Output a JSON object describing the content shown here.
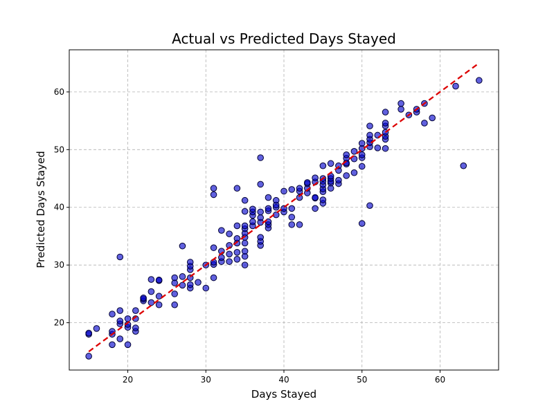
{
  "chart_data": {
    "type": "scatter",
    "title": "Actual vs Predicted Days Stayed",
    "xlabel": "Days Stayed",
    "ylabel": "Predicted Days Stayed",
    "xlim": [
      12.5,
      67.5
    ],
    "ylim": [
      11.8,
      67.3
    ],
    "xticks": [
      "20",
      "30",
      "40",
      "50",
      "60"
    ],
    "yticks": [
      "20",
      "30",
      "40",
      "50",
      "60"
    ],
    "grid": true,
    "grid_style": "dashed",
    "point_color": "#0000cc",
    "point_edge_color": "#000033",
    "line_color": "#dd0000",
    "reference_line": {
      "style": "dashed",
      "from": [
        15,
        15
      ],
      "to": [
        65,
        65
      ]
    },
    "points": [
      [
        15,
        14.2
      ],
      [
        15,
        18
      ],
      [
        15,
        18.2
      ],
      [
        16,
        19
      ],
      [
        18,
        16.2
      ],
      [
        18,
        18
      ],
      [
        18,
        18.5
      ],
      [
        18,
        21.5
      ],
      [
        19,
        17.2
      ],
      [
        19,
        19.8
      ],
      [
        19,
        20.3
      ],
      [
        19,
        22.1
      ],
      [
        19,
        31.4
      ],
      [
        20,
        16.2
      ],
      [
        20,
        19.2
      ],
      [
        20,
        19.7
      ],
      [
        20,
        20.7
      ],
      [
        21,
        18.5
      ],
      [
        21,
        19.1
      ],
      [
        21,
        20.7
      ],
      [
        21,
        22.1
      ],
      [
        22,
        23.8
      ],
      [
        22,
        24.1
      ],
      [
        22,
        24.3
      ],
      [
        23,
        23.5
      ],
      [
        23,
        25.4
      ],
      [
        23,
        27.5
      ],
      [
        24,
        23.1
      ],
      [
        24,
        24.6
      ],
      [
        24,
        27.3
      ],
      [
        24,
        27.4
      ],
      [
        26,
        23.1
      ],
      [
        26,
        25
      ],
      [
        26,
        26.9
      ],
      [
        26,
        27.8
      ],
      [
        27,
        26.5
      ],
      [
        27,
        28
      ],
      [
        27,
        33.3
      ],
      [
        28,
        26
      ],
      [
        28,
        26.6
      ],
      [
        28,
        27.8
      ],
      [
        28,
        29.2
      ],
      [
        28,
        29.8
      ],
      [
        28,
        30.5
      ],
      [
        29,
        27
      ],
      [
        30,
        26
      ],
      [
        30,
        30
      ],
      [
        31,
        27.8
      ],
      [
        31,
        30.1
      ],
      [
        31,
        30.5
      ],
      [
        31,
        33
      ],
      [
        31,
        42.2
      ],
      [
        31,
        43.3
      ],
      [
        32,
        30.6
      ],
      [
        32,
        31.3
      ],
      [
        32,
        32.4
      ],
      [
        32,
        36
      ],
      [
        33,
        30.6
      ],
      [
        33,
        31.9
      ],
      [
        33,
        33.4
      ],
      [
        33,
        35.4
      ],
      [
        34,
        31
      ],
      [
        34,
        32.2
      ],
      [
        34,
        33.8
      ],
      [
        34,
        34.6
      ],
      [
        34,
        36.8
      ],
      [
        34,
        43.3
      ],
      [
        35,
        30
      ],
      [
        35,
        31.5
      ],
      [
        35,
        32.4
      ],
      [
        35,
        33.8
      ],
      [
        35,
        34.8
      ],
      [
        35,
        35.5
      ],
      [
        35,
        36.3
      ],
      [
        35,
        36.8
      ],
      [
        35,
        39.3
      ],
      [
        35,
        41.2
      ],
      [
        36,
        36.8
      ],
      [
        36,
        37.5
      ],
      [
        36,
        38.6
      ],
      [
        36,
        39.2
      ],
      [
        36,
        39.7
      ],
      [
        37,
        33.4
      ],
      [
        37,
        34.1
      ],
      [
        37,
        34.8
      ],
      [
        37,
        37.4
      ],
      [
        37,
        38.2
      ],
      [
        37,
        39.2
      ],
      [
        37,
        44
      ],
      [
        37,
        48.6
      ],
      [
        38,
        36.4
      ],
      [
        38,
        37
      ],
      [
        38,
        37.5
      ],
      [
        38,
        39.4
      ],
      [
        38,
        39.8
      ],
      [
        38,
        41.7
      ],
      [
        39,
        38.7
      ],
      [
        39,
        40
      ],
      [
        39,
        40.4
      ],
      [
        39,
        41.2
      ],
      [
        40,
        39.2
      ],
      [
        40,
        39.8
      ],
      [
        40,
        42.8
      ],
      [
        41,
        37
      ],
      [
        41,
        38.3
      ],
      [
        41,
        39.8
      ],
      [
        41,
        43.1
      ],
      [
        42,
        37
      ],
      [
        42,
        41.7
      ],
      [
        42,
        42.8
      ],
      [
        42,
        43.3
      ],
      [
        43,
        42.5
      ],
      [
        43,
        43.3
      ],
      [
        43,
        44.1
      ],
      [
        43,
        44.3
      ],
      [
        44,
        39.8
      ],
      [
        44,
        41.6
      ],
      [
        44,
        41.7
      ],
      [
        44,
        44.4
      ],
      [
        44,
        45.1
      ],
      [
        45,
        40.7
      ],
      [
        45,
        41.3
      ],
      [
        45,
        42.7
      ],
      [
        45,
        43.2
      ],
      [
        45,
        43.9
      ],
      [
        45,
        44.5
      ],
      [
        45,
        45
      ],
      [
        45,
        47.2
      ],
      [
        46,
        43.3
      ],
      [
        46,
        44.2
      ],
      [
        46,
        44.5
      ],
      [
        46,
        45
      ],
      [
        46,
        45.4
      ],
      [
        46,
        47.6
      ],
      [
        47,
        44.1
      ],
      [
        47,
        44.7
      ],
      [
        47,
        46.4
      ],
      [
        47,
        47.2
      ],
      [
        48,
        45.5
      ],
      [
        48,
        47.5
      ],
      [
        48,
        47.7
      ],
      [
        48,
        48.5
      ],
      [
        48,
        49.1
      ],
      [
        49,
        46
      ],
      [
        49,
        48.4
      ],
      [
        49,
        49.7
      ],
      [
        50,
        37.2
      ],
      [
        50,
        47.1
      ],
      [
        50,
        48.6
      ],
      [
        50,
        49.1
      ],
      [
        50,
        50.2
      ],
      [
        50,
        51.1
      ],
      [
        51,
        40.3
      ],
      [
        51,
        50.5
      ],
      [
        51,
        51.2
      ],
      [
        51,
        51.8
      ],
      [
        51,
        52.5
      ],
      [
        51,
        54.1
      ],
      [
        52,
        50.3
      ],
      [
        52,
        52.5
      ],
      [
        53,
        50.2
      ],
      [
        53,
        51.8
      ],
      [
        53,
        52.3
      ],
      [
        53,
        53
      ],
      [
        53,
        54.1
      ],
      [
        53,
        54.6
      ],
      [
        53,
        56.5
      ],
      [
        55,
        57
      ],
      [
        55,
        58
      ],
      [
        56,
        56
      ],
      [
        57,
        56.5
      ],
      [
        57,
        57
      ],
      [
        58,
        54.6
      ],
      [
        58,
        58
      ],
      [
        59,
        55.5
      ],
      [
        62,
        61
      ],
      [
        63,
        47.2
      ],
      [
        65,
        62
      ]
    ]
  }
}
